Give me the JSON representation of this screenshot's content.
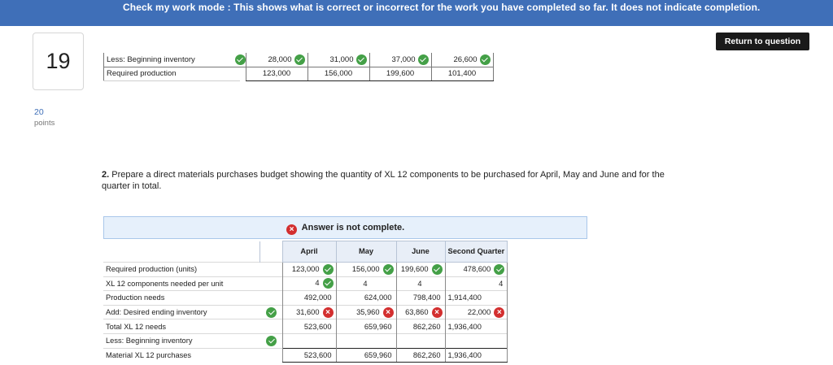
{
  "banner": {
    "text": "Check my work mode : This shows what is correct or incorrect for the work you have completed so far. It does not indicate completion."
  },
  "return_button": {
    "label": "Return to question"
  },
  "question": {
    "number": "19",
    "points_value": "20",
    "points_label": "points"
  },
  "top_table": {
    "rows": [
      {
        "label": "Less: Beginning inventory",
        "label_mark": "correct",
        "cells": [
          {
            "value": "28,000",
            "mark": "correct"
          },
          {
            "value": "31,000",
            "mark": "correct"
          },
          {
            "value": "37,000",
            "mark": "correct"
          },
          {
            "value": "26,600",
            "mark": "correct"
          }
        ]
      },
      {
        "label": "Required production",
        "label_mark": "",
        "cells": [
          {
            "value": "123,000",
            "mark": ""
          },
          {
            "value": "156,000",
            "mark": ""
          },
          {
            "value": "199,600",
            "mark": ""
          },
          {
            "value": "101,400",
            "mark": ""
          }
        ]
      }
    ]
  },
  "instruction": {
    "number": "2.",
    "text": "Prepare a direct materials purchases budget showing the quantity of XL 12 components to be purchased for April, May and June and for the quarter in total."
  },
  "answer_status": {
    "text": "Answer is not complete."
  },
  "budget_table": {
    "headers": [
      "April",
      "May",
      "June",
      "Second Quarter"
    ],
    "rows": [
      {
        "label": "Required production (units)",
        "label_mark": "",
        "cells": [
          {
            "value": "123,000",
            "mark": "correct"
          },
          {
            "value": "156,000",
            "mark": "correct"
          },
          {
            "value": "199,600",
            "mark": "correct"
          },
          {
            "value": "478,600",
            "mark": "correct"
          }
        ]
      },
      {
        "label": "XL 12 components needed per unit",
        "label_mark": "",
        "cells": [
          {
            "value": "4",
            "mark": "correct"
          },
          {
            "value": "4",
            "mark": ""
          },
          {
            "value": "4",
            "mark": ""
          },
          {
            "value": "4",
            "mark": ""
          }
        ]
      },
      {
        "label": "Production needs",
        "label_mark": "",
        "cells": [
          {
            "value": "492,000",
            "mark": ""
          },
          {
            "value": "624,000",
            "mark": ""
          },
          {
            "value": "798,400",
            "mark": ""
          },
          {
            "value": "1,914,400",
            "mark": ""
          }
        ]
      },
      {
        "label": "Add: Desired ending inventory",
        "label_mark": "correct",
        "cells": [
          {
            "value": "31,600",
            "mark": "incorrect"
          },
          {
            "value": "35,960",
            "mark": "incorrect"
          },
          {
            "value": "63,860",
            "mark": "incorrect"
          },
          {
            "value": "22,000",
            "mark": "incorrect"
          }
        ]
      },
      {
        "label": "Total XL 12 needs",
        "label_mark": "",
        "cells": [
          {
            "value": "523,600",
            "mark": ""
          },
          {
            "value": "659,960",
            "mark": ""
          },
          {
            "value": "862,260",
            "mark": ""
          },
          {
            "value": "1,936,400",
            "mark": ""
          }
        ]
      },
      {
        "label": "Less: Beginning inventory",
        "label_mark": "correct",
        "cells": [
          {
            "value": "",
            "mark": ""
          },
          {
            "value": "",
            "mark": ""
          },
          {
            "value": "",
            "mark": ""
          },
          {
            "value": "",
            "mark": ""
          }
        ]
      },
      {
        "label": "Material XL 12 purchases",
        "label_mark": "",
        "cells": [
          {
            "value": "523,600",
            "mark": ""
          },
          {
            "value": "659,960",
            "mark": ""
          },
          {
            "value": "862,260",
            "mark": ""
          },
          {
            "value": "1,936,400",
            "mark": ""
          }
        ]
      }
    ]
  },
  "colors": {
    "banner": "#3f6fb8",
    "correct": "#44a047",
    "incorrect": "#d32f2f",
    "answer_banner_bg": "#e6f0fb"
  },
  "icons": {
    "correct": "check-circle-icon",
    "incorrect": "x-circle-icon"
  }
}
